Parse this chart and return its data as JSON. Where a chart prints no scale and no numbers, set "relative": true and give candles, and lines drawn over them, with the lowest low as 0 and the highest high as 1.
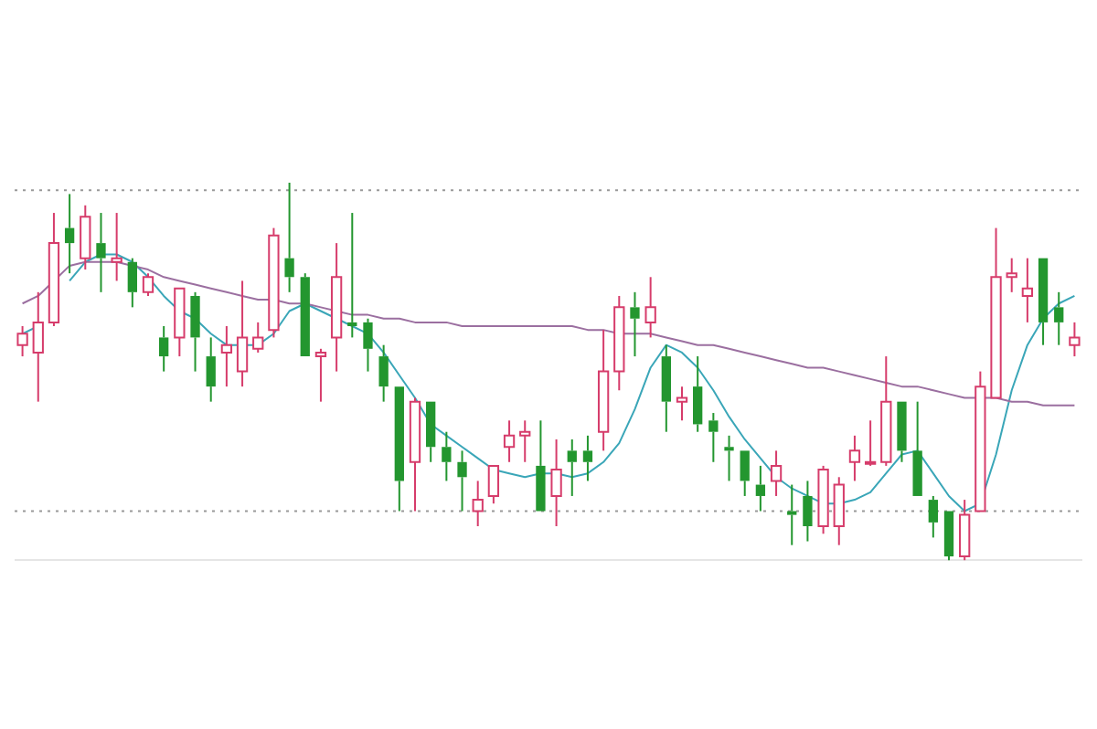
{
  "chart_data": {
    "type": "candlestick",
    "relative": true,
    "categories": [
      null,
      null,
      null,
      null,
      null,
      null,
      null,
      null,
      null,
      null,
      null,
      null,
      null,
      null,
      null,
      null,
      null,
      null,
      null,
      null,
      null,
      null,
      null,
      null,
      null,
      null,
      null,
      null,
      null,
      null,
      null,
      null,
      null,
      null,
      null,
      null,
      null,
      null,
      null,
      null,
      null,
      null,
      null,
      null,
      null,
      null,
      null,
      null,
      null,
      null,
      null,
      null,
      null,
      null,
      null,
      null,
      null,
      null,
      null,
      null,
      null,
      null,
      null,
      null,
      null,
      null,
      null,
      null
    ],
    "ohlc": [
      [
        0.57,
        0.62,
        0.54,
        0.6
      ],
      [
        0.55,
        0.71,
        0.42,
        0.63
      ],
      [
        0.63,
        0.92,
        0.62,
        0.84
      ],
      [
        0.88,
        0.97,
        0.76,
        0.84
      ],
      [
        0.8,
        0.94,
        0.77,
        0.91
      ],
      [
        0.84,
        0.92,
        0.71,
        0.8
      ],
      [
        0.79,
        0.92,
        0.74,
        0.8
      ],
      [
        0.79,
        0.8,
        0.67,
        0.71
      ],
      [
        0.71,
        0.76,
        0.7,
        0.75
      ],
      [
        0.59,
        0.62,
        0.5,
        0.54
      ],
      [
        0.59,
        0.72,
        0.54,
        0.72
      ],
      [
        0.7,
        0.71,
        0.5,
        0.59
      ],
      [
        0.54,
        0.59,
        0.42,
        0.46
      ],
      [
        0.55,
        0.62,
        0.46,
        0.57
      ],
      [
        0.5,
        0.74,
        0.46,
        0.59
      ],
      [
        0.56,
        0.63,
        0.55,
        0.59
      ],
      [
        0.61,
        0.88,
        0.59,
        0.86
      ],
      [
        0.8,
        1.0,
        0.71,
        0.75
      ],
      [
        0.75,
        0.76,
        0.54,
        0.54
      ],
      [
        0.54,
        0.56,
        0.42,
        0.55
      ],
      [
        0.59,
        0.84,
        0.5,
        0.75
      ],
      [
        0.63,
        0.92,
        0.59,
        0.62
      ],
      [
        0.63,
        0.64,
        0.5,
        0.56
      ],
      [
        0.54,
        0.57,
        0.42,
        0.46
      ],
      [
        0.46,
        0.46,
        0.13,
        0.21
      ],
      [
        0.26,
        0.43,
        0.13,
        0.42
      ],
      [
        0.42,
        0.42,
        0.26,
        0.3
      ],
      [
        0.3,
        0.34,
        0.21,
        0.26
      ],
      [
        0.26,
        0.29,
        0.13,
        0.22
      ],
      [
        0.13,
        0.21,
        0.09,
        0.16
      ],
      [
        0.17,
        0.25,
        0.15,
        0.25
      ],
      [
        0.3,
        0.37,
        0.26,
        0.33
      ],
      [
        0.33,
        0.37,
        0.26,
        0.34
      ],
      [
        0.25,
        0.37,
        0.13,
        0.13
      ],
      [
        0.17,
        0.32,
        0.09,
        0.24
      ],
      [
        0.29,
        0.32,
        0.17,
        0.26
      ],
      [
        0.29,
        0.33,
        0.21,
        0.26
      ],
      [
        0.34,
        0.61,
        0.29,
        0.5
      ],
      [
        0.5,
        0.7,
        0.45,
        0.67
      ],
      [
        0.67,
        0.71,
        0.54,
        0.64
      ],
      [
        0.63,
        0.75,
        0.59,
        0.67
      ],
      [
        0.54,
        0.57,
        0.34,
        0.42
      ],
      [
        0.42,
        0.46,
        0.37,
        0.43
      ],
      [
        0.46,
        0.54,
        0.34,
        0.36
      ],
      [
        0.37,
        0.39,
        0.26,
        0.34
      ],
      [
        0.3,
        0.33,
        0.21,
        0.29
      ],
      [
        0.29,
        0.29,
        0.17,
        0.21
      ],
      [
        0.2,
        0.25,
        0.13,
        0.17
      ],
      [
        0.21,
        0.29,
        0.17,
        0.25
      ],
      [
        0.13,
        0.2,
        0.04,
        0.12
      ],
      [
        0.17,
        0.21,
        0.05,
        0.09
      ],
      [
        0.09,
        0.25,
        0.07,
        0.24
      ],
      [
        0.09,
        0.22,
        0.04,
        0.2
      ],
      [
        0.26,
        0.33,
        0.21,
        0.29
      ],
      [
        0.26,
        0.37,
        0.25,
        0.26
      ],
      [
        0.26,
        0.54,
        0.25,
        0.42
      ],
      [
        0.42,
        0.42,
        0.26,
        0.29
      ],
      [
        0.29,
        0.42,
        0.17,
        0.17
      ],
      [
        0.16,
        0.17,
        0.06,
        0.1
      ],
      [
        0.13,
        0.13,
        0.0,
        0.01
      ],
      [
        0.01,
        0.16,
        0.0,
        0.12
      ],
      [
        0.13,
        0.5,
        0.13,
        0.46
      ],
      [
        0.43,
        0.88,
        0.43,
        0.75
      ],
      [
        0.75,
        0.8,
        0.71,
        0.76
      ],
      [
        0.7,
        0.8,
        0.63,
        0.72
      ],
      [
        0.8,
        0.8,
        0.57,
        0.63
      ],
      [
        0.67,
        0.71,
        0.57,
        0.63
      ],
      [
        0.57,
        0.63,
        0.54,
        0.59
      ]
    ],
    "series": [
      {
        "type": "line",
        "color": "#9b6fa0",
        "values": [
          0.68,
          0.7,
          0.74,
          0.78,
          0.79,
          0.79,
          0.79,
          0.78,
          0.77,
          0.75,
          0.74,
          0.73,
          0.72,
          0.71,
          0.7,
          0.69,
          0.69,
          0.68,
          0.68,
          0.67,
          0.66,
          0.65,
          0.65,
          0.64,
          0.64,
          0.63,
          0.63,
          0.63,
          0.62,
          0.62,
          0.62,
          0.62,
          0.62,
          0.62,
          0.62,
          0.62,
          0.61,
          0.61,
          0.6,
          0.6,
          0.6,
          0.59,
          0.58,
          0.57,
          0.57,
          0.56,
          0.55,
          0.54,
          0.53,
          0.52,
          0.51,
          0.51,
          0.5,
          0.49,
          0.48,
          0.47,
          0.46,
          0.46,
          0.45,
          0.44,
          0.43,
          0.43,
          0.43,
          0.42,
          0.42,
          0.41,
          0.41,
          0.41
        ]
      },
      {
        "type": "line",
        "color": "#3aa6b8",
        "values": [
          0.6,
          0.62,
          null,
          0.74,
          0.79,
          0.81,
          0.81,
          0.79,
          0.75,
          0.7,
          0.66,
          0.64,
          0.6,
          0.57,
          0.57,
          0.57,
          0.6,
          0.66,
          0.68,
          0.66,
          0.64,
          0.62,
          0.6,
          0.55,
          0.49,
          0.43,
          0.36,
          0.33,
          0.3,
          0.27,
          0.24,
          0.23,
          0.22,
          0.23,
          0.23,
          0.22,
          0.23,
          0.26,
          0.31,
          0.4,
          0.51,
          0.57,
          0.55,
          0.51,
          0.45,
          0.38,
          0.32,
          0.27,
          0.22,
          0.19,
          0.17,
          0.15,
          0.15,
          0.16,
          0.18,
          0.23,
          0.28,
          0.29,
          0.23,
          0.17,
          0.13,
          0.15,
          0.28,
          0.45,
          0.57,
          0.64,
          0.68,
          0.7
        ]
      }
    ],
    "ref_lines": [
      {
        "axis": "y",
        "value": 0.98,
        "color": "#999999",
        "line_style": "dotted"
      },
      {
        "axis": "y",
        "value": 0.13,
        "color": "#999999",
        "line_style": "dotted"
      }
    ],
    "legend": false,
    "marker": "none"
  }
}
